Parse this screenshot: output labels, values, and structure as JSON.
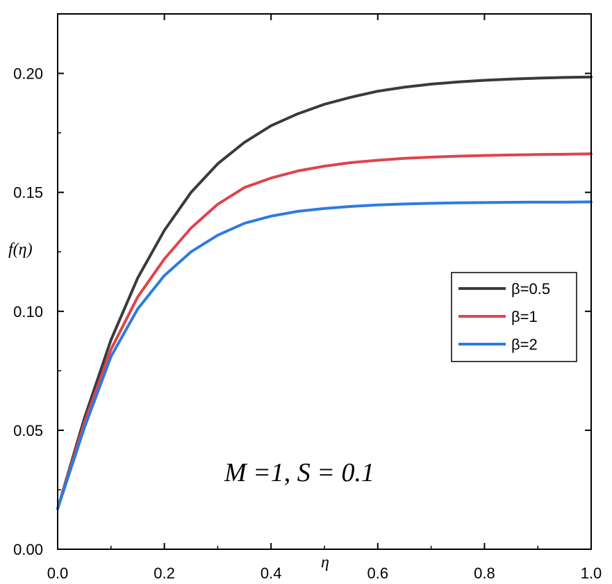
{
  "chart_data": {
    "type": "line",
    "title": "",
    "xlabel": "η",
    "ylabel": "f(η)",
    "xlim": [
      0.0,
      1.0
    ],
    "ylim": [
      0.0,
      0.225
    ],
    "x_ticks": [
      "0.0",
      "0.2",
      "0.4",
      "0.6",
      "0.8",
      "1.0"
    ],
    "y_ticks": [
      "0.00",
      "0.05",
      "0.10",
      "0.15",
      "0.20"
    ],
    "x_tick_values": [
      0.0,
      0.2,
      0.4,
      0.6,
      0.8,
      1.0
    ],
    "y_tick_values": [
      0.0,
      0.05,
      0.1,
      0.15,
      0.2
    ],
    "grid": false,
    "legend_position": "right-middle",
    "annotation": "M =1, S = 0.1",
    "x": [
      0.0,
      0.05,
      0.1,
      0.15,
      0.2,
      0.25,
      0.3,
      0.35,
      0.4,
      0.45,
      0.5,
      0.55,
      0.6,
      0.65,
      0.7,
      0.75,
      0.8,
      0.85,
      0.9,
      0.95,
      1.0
    ],
    "series": [
      {
        "name": "β=0.5",
        "color": "#3a3a3a",
        "values": [
          0.017,
          0.055,
          0.088,
          0.114,
          0.134,
          0.15,
          0.162,
          0.171,
          0.178,
          0.183,
          0.187,
          0.19,
          0.1925,
          0.1942,
          0.1955,
          0.1964,
          0.1971,
          0.1976,
          0.198,
          0.1983,
          0.1985
        ]
      },
      {
        "name": "β=1",
        "color": "#e0434a",
        "values": [
          0.017,
          0.053,
          0.084,
          0.106,
          0.122,
          0.135,
          0.145,
          0.152,
          0.156,
          0.159,
          0.161,
          0.1625,
          0.1635,
          0.1643,
          0.1648,
          0.1652,
          0.1655,
          0.1657,
          0.1659,
          0.166,
          0.1662
        ]
      },
      {
        "name": "β=2",
        "color": "#2e7be0",
        "values": [
          0.017,
          0.051,
          0.081,
          0.101,
          0.115,
          0.125,
          0.132,
          0.137,
          0.14,
          0.142,
          0.1432,
          0.1441,
          0.1447,
          0.1451,
          0.1454,
          0.1456,
          0.1457,
          0.1458,
          0.1459,
          0.1459,
          0.146
        ]
      }
    ]
  }
}
